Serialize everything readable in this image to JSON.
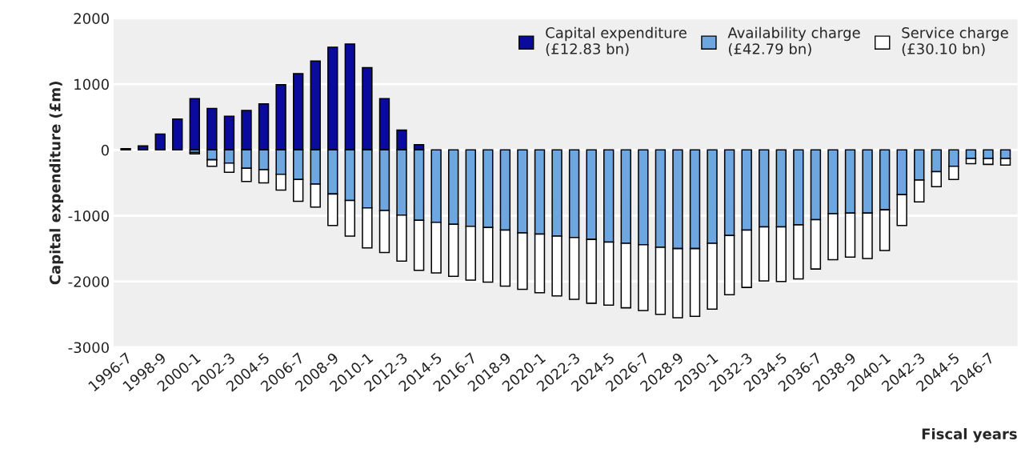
{
  "chart_data": {
    "type": "bar",
    "stacked": true,
    "xlabel": "Fiscal years",
    "ylabel": "Capital expenditure (£m)",
    "categories": [
      "1996-7",
      null,
      "1998-9",
      null,
      "2000-1",
      null,
      "2002-3",
      null,
      "2004-5",
      null,
      "2006-7",
      null,
      "2008-9",
      null,
      "2010-1",
      null,
      "2012-3",
      null,
      "2014-5",
      null,
      "2016-7",
      null,
      "2018-9",
      null,
      "2020-1",
      null,
      "2022-3",
      null,
      "2024-5",
      null,
      "2026-7",
      null,
      "2028-9",
      null,
      "2030-1",
      null,
      "2032-3",
      null,
      "2034-5",
      null,
      "2036-7",
      null,
      "2038-9",
      null,
      "2040-1",
      null,
      "2042-3",
      null,
      "2044-5",
      null,
      "2046-7",
      null
    ],
    "series": [
      {
        "name": "Capital expenditure\n(£12.83 bn)",
        "color": "#0a0a9c",
        "values": [
          20,
          60,
          240,
          470,
          780,
          630,
          510,
          600,
          700,
          990,
          1160,
          1350,
          1560,
          1610,
          1250,
          780,
          300,
          80,
          0,
          0,
          0,
          0,
          0,
          0,
          0,
          0,
          0,
          0,
          0,
          0,
          0,
          0,
          0,
          0,
          0,
          0,
          0,
          0,
          0,
          0,
          0,
          0,
          0,
          0,
          0,
          0,
          0,
          0,
          0,
          0,
          0,
          0
        ]
      },
      {
        "name": "Availability charge\n(£42.79 bn)",
        "color": "#6ea6e0",
        "values": [
          0,
          0,
          0,
          0,
          -40,
          -150,
          -200,
          -280,
          -300,
          -370,
          -450,
          -520,
          -670,
          -770,
          -880,
          -920,
          -990,
          -1070,
          -1100,
          -1130,
          -1160,
          -1180,
          -1220,
          -1260,
          -1280,
          -1310,
          -1330,
          -1360,
          -1400,
          -1420,
          -1440,
          -1480,
          -1500,
          -1500,
          -1420,
          -1300,
          -1220,
          -1170,
          -1170,
          -1140,
          -1060,
          -970,
          -960,
          -960,
          -910,
          -680,
          -460,
          -330,
          -250,
          -130,
          -130,
          -130
        ]
      },
      {
        "name": "Service charge\n(£30.10 bn)",
        "color": "#ffffff",
        "values": [
          0,
          0,
          0,
          0,
          -20,
          -100,
          -140,
          -200,
          -200,
          -240,
          -330,
          -350,
          -480,
          -540,
          -610,
          -640,
          -700,
          -760,
          -770,
          -790,
          -820,
          -830,
          -850,
          -860,
          -890,
          -910,
          -940,
          -970,
          -960,
          -980,
          -1000,
          -1020,
          -1050,
          -1030,
          -1000,
          -900,
          -870,
          -820,
          -830,
          -820,
          -750,
          -700,
          -670,
          -690,
          -620,
          -470,
          -330,
          -230,
          -200,
          -80,
          -90,
          -100
        ]
      }
    ],
    "ylim": [
      -3000,
      2000
    ],
    "yticks": [
      -3000,
      -2000,
      -1000,
      0,
      1000,
      2000
    ],
    "grid": "y",
    "legend": "top right"
  }
}
